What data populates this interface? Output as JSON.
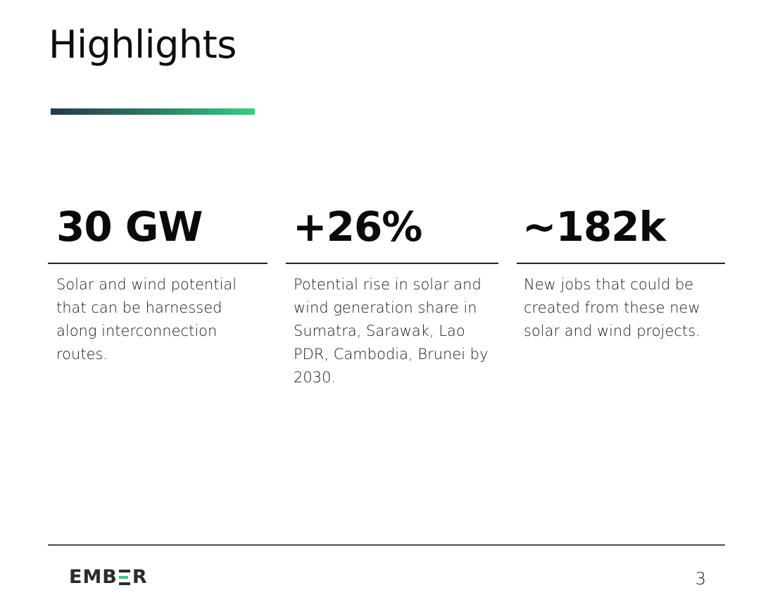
{
  "page": {
    "title": "Highlights",
    "number": "3"
  },
  "brand": {
    "logo_text_left": "EMB",
    "logo_text_right": "R",
    "logo_text_full": "EMBER",
    "accent_gradient": [
      "#25394f",
      "#2ed27f"
    ]
  },
  "stats": [
    {
      "value": "30 GW",
      "description": "Solar and wind potential that can be harnessed along interconnection routes."
    },
    {
      "value": "+26%",
      "description": "Potential rise in solar and wind generation share in Sumatra, Sarawak, Lao PDR, Cambodia, Brunei by 2030."
    },
    {
      "value": "~182k",
      "description": "New jobs that could be created from these new solar and wind projects."
    }
  ]
}
